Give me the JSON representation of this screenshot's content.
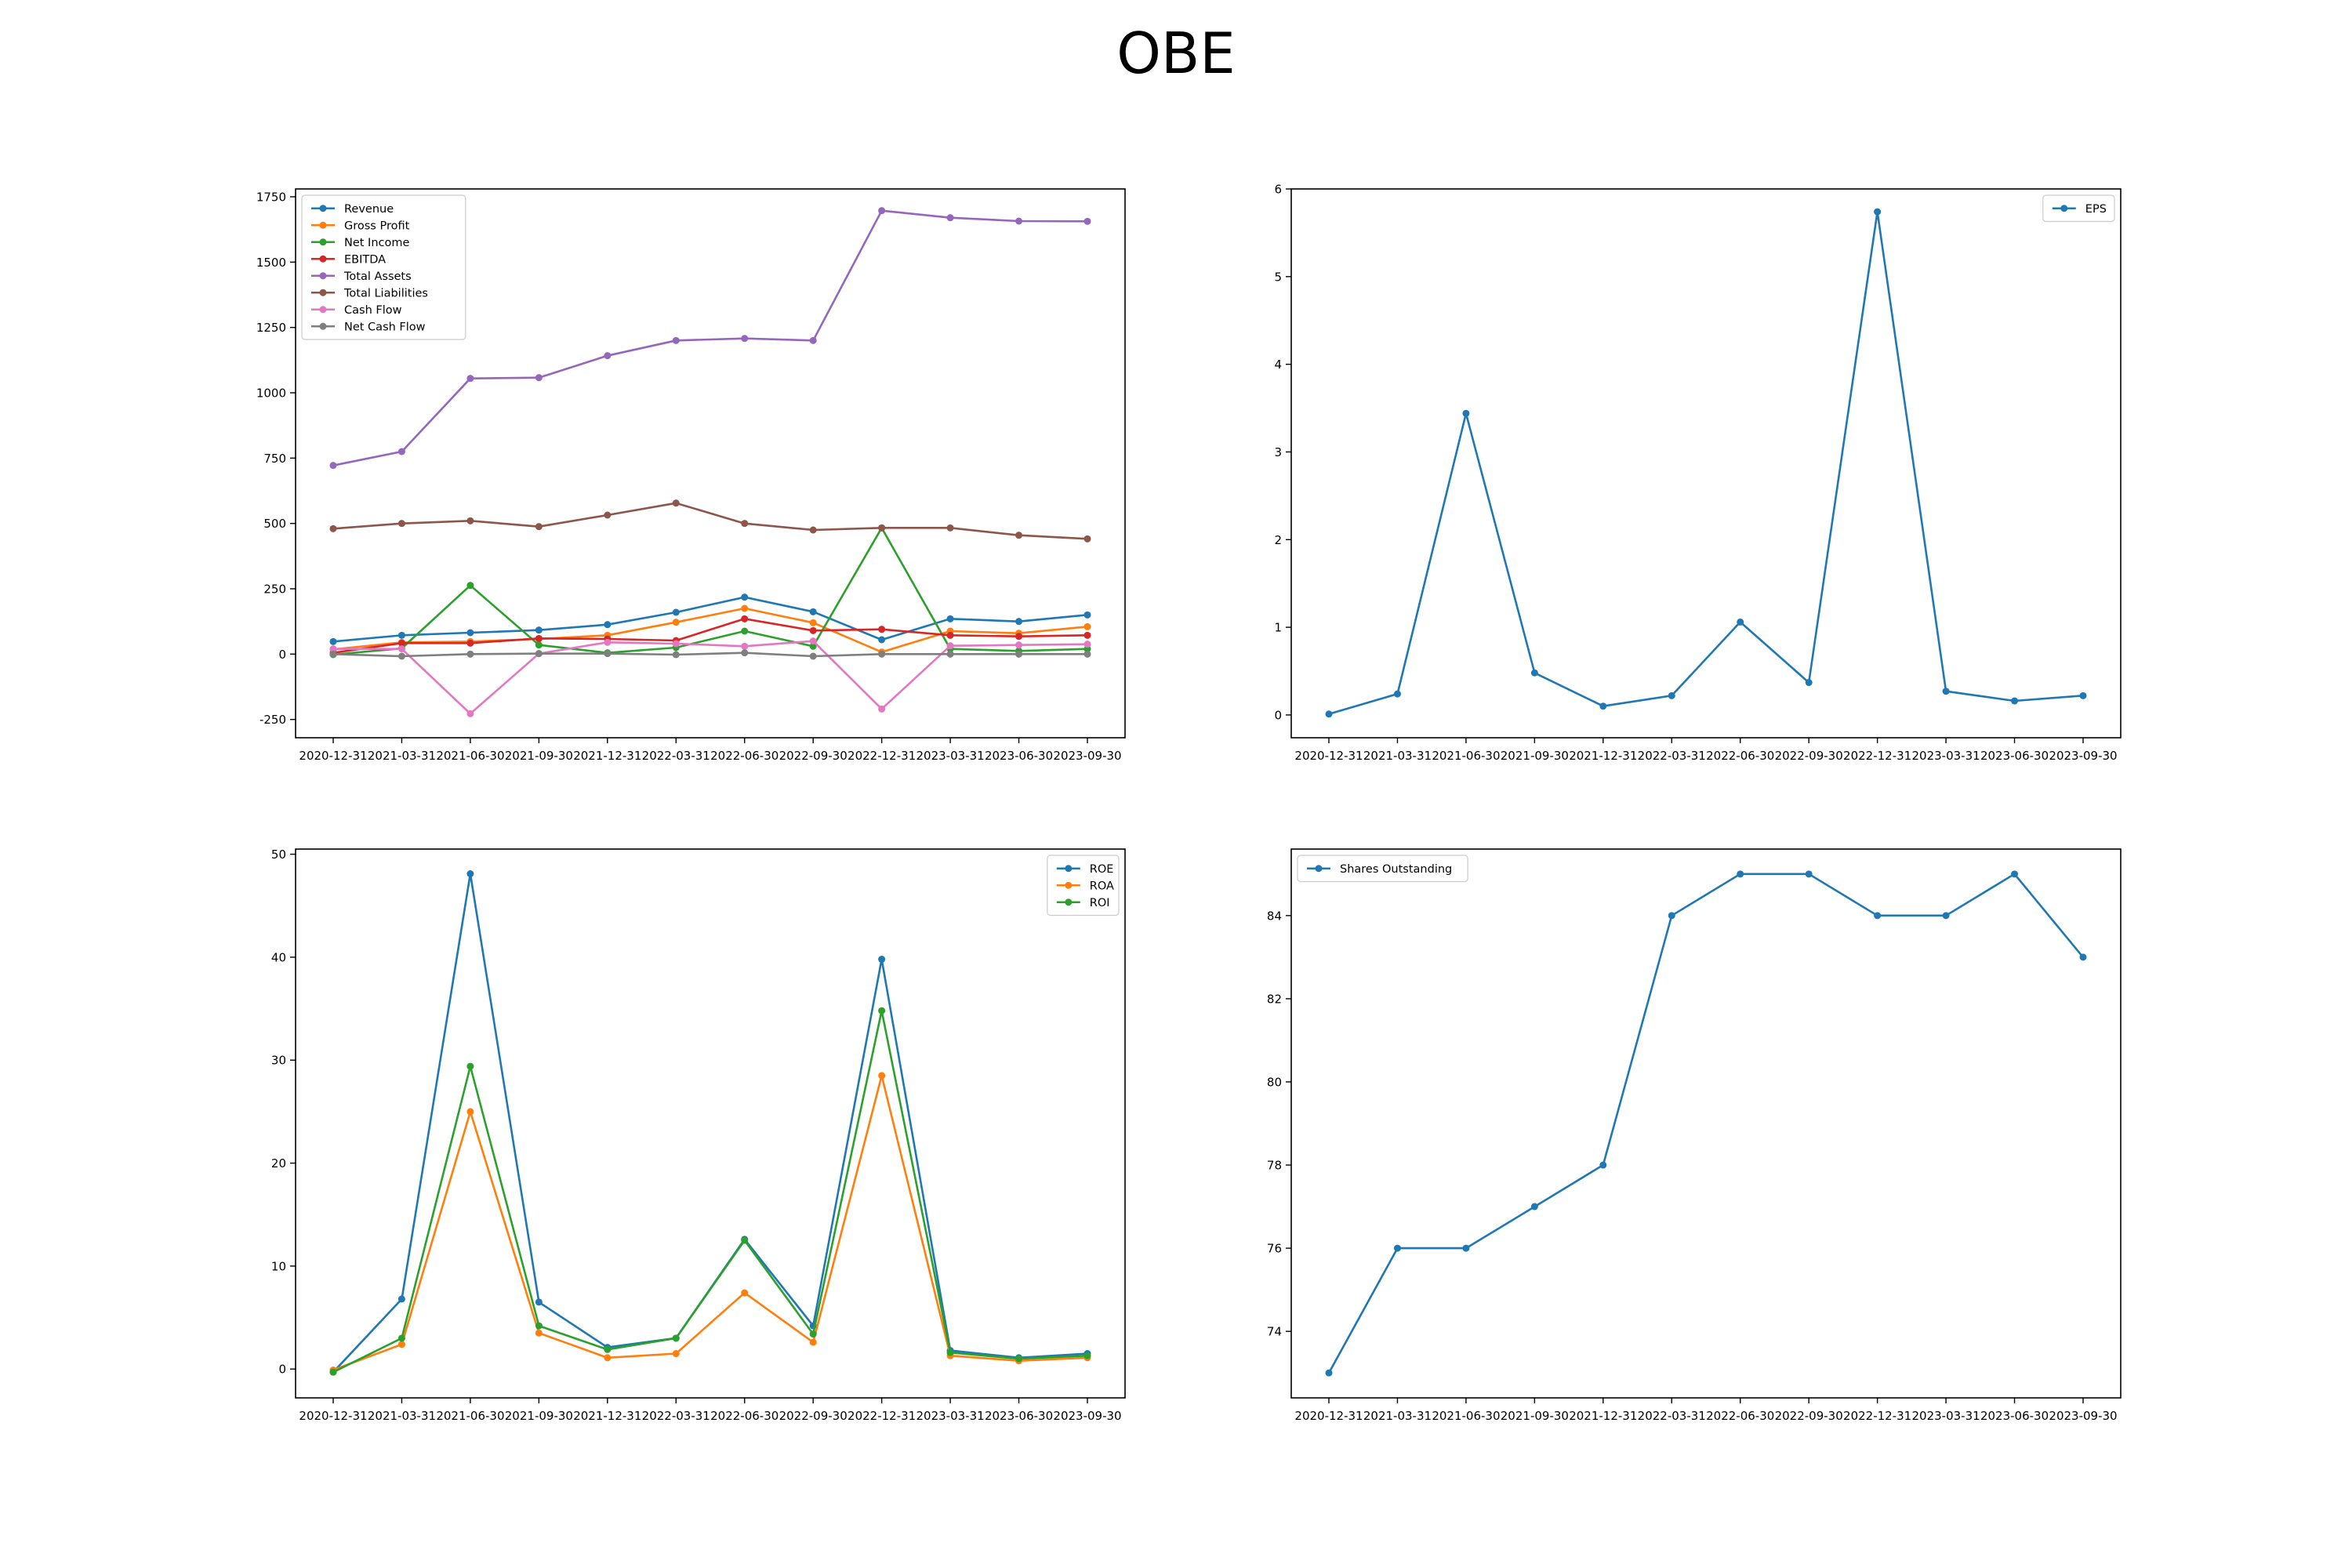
{
  "figure": {
    "title": "OBE"
  },
  "chart_data": [
    {
      "type": "line",
      "title": "",
      "xlabel": "",
      "ylabel": "",
      "categories": [
        "2020-12-31",
        "2021-03-31",
        "2021-06-30",
        "2021-09-30",
        "2021-12-31",
        "2022-03-31",
        "2022-06-30",
        "2022-09-30",
        "2022-12-31",
        "2023-03-31",
        "2023-06-30",
        "2023-09-30"
      ],
      "ylim": [
        -320,
        1780
      ],
      "yticks": [
        -250,
        0,
        250,
        500,
        750,
        1000,
        1250,
        1500,
        1750
      ],
      "grid": false,
      "legend": "upper-left",
      "series": [
        {
          "name": "Revenue",
          "color": "#1f77b4",
          "values": [
            48,
            72,
            82,
            92,
            113,
            160,
            218,
            162,
            55,
            135,
            125,
            150
          ]
        },
        {
          "name": "Gross Profit",
          "color": "#ff7f0e",
          "values": [
            18,
            45,
            48,
            58,
            72,
            122,
            175,
            120,
            8,
            88,
            80,
            105
          ]
        },
        {
          "name": "Net Income",
          "color": "#2ca02c",
          "values": [
            -2,
            22,
            263,
            35,
            5,
            25,
            88,
            30,
            483,
            20,
            12,
            20
          ]
        },
        {
          "name": "EBITDA",
          "color": "#d62728",
          "values": [
            5,
            42,
            42,
            60,
            58,
            52,
            135,
            90,
            95,
            72,
            68,
            72
          ]
        },
        {
          "name": "Total Assets",
          "color": "#9467bd",
          "values": [
            722,
            775,
            1055,
            1058,
            1142,
            1200,
            1208,
            1200,
            1697,
            1670,
            1657,
            1656
          ]
        },
        {
          "name": "Total Liabilities",
          "color": "#8c564b",
          "values": [
            480,
            500,
            510,
            488,
            532,
            578,
            500,
            475,
            483,
            483,
            455,
            441
          ]
        },
        {
          "name": "Cash Flow",
          "color": "#e377c2",
          "values": [
            20,
            20,
            -228,
            2,
            45,
            40,
            30,
            50,
            -210,
            32,
            35,
            38
          ]
        },
        {
          "name": "Net Cash Flow",
          "color": "#7f7f7f",
          "values": [
            0,
            -8,
            0,
            2,
            2,
            -2,
            5,
            -8,
            0,
            0,
            0,
            0
          ]
        }
      ]
    },
    {
      "type": "line",
      "title": "",
      "xlabel": "",
      "ylabel": "",
      "categories": [
        "2020-12-31",
        "2021-03-31",
        "2021-06-30",
        "2021-09-30",
        "2021-12-31",
        "2022-03-31",
        "2022-06-30",
        "2022-09-30",
        "2022-12-31",
        "2023-03-31",
        "2023-06-30",
        "2023-09-30"
      ],
      "ylim": [
        -0.26,
        6.0
      ],
      "yticks": [
        0,
        1,
        2,
        3,
        4,
        5,
        6
      ],
      "grid": false,
      "legend": "upper-right",
      "series": [
        {
          "name": "EPS",
          "color": "#1f77b4",
          "values": [
            0.01,
            0.24,
            3.44,
            0.48,
            0.1,
            0.22,
            1.06,
            0.37,
            5.74,
            0.27,
            0.16,
            0.22
          ]
        }
      ]
    },
    {
      "type": "line",
      "title": "",
      "xlabel": "",
      "ylabel": "",
      "categories": [
        "2020-12-31",
        "2021-03-31",
        "2021-06-30",
        "2021-09-30",
        "2021-12-31",
        "2022-03-31",
        "2022-06-30",
        "2022-09-30",
        "2022-12-31",
        "2023-03-31",
        "2023-06-30",
        "2023-09-30"
      ],
      "ylim": [
        -2.8,
        50.5
      ],
      "yticks": [
        0,
        10,
        20,
        30,
        40,
        50
      ],
      "grid": false,
      "legend": "upper-right",
      "series": [
        {
          "name": "ROE",
          "color": "#1f77b4",
          "values": [
            -0.3,
            6.8,
            48.1,
            6.5,
            2.1,
            3.0,
            12.6,
            4.2,
            39.8,
            1.8,
            1.1,
            1.5
          ]
        },
        {
          "name": "ROA",
          "color": "#ff7f0e",
          "values": [
            -0.1,
            2.4,
            25.0,
            3.5,
            1.1,
            1.5,
            7.4,
            2.6,
            28.5,
            1.3,
            0.8,
            1.1
          ]
        },
        {
          "name": "ROI",
          "color": "#2ca02c",
          "values": [
            -0.3,
            3.0,
            29.4,
            4.2,
            1.9,
            3.0,
            12.5,
            3.4,
            34.8,
            1.6,
            1.0,
            1.3
          ]
        }
      ]
    },
    {
      "type": "line",
      "title": "",
      "xlabel": "",
      "ylabel": "",
      "categories": [
        "2020-12-31",
        "2021-03-31",
        "2021-06-30",
        "2021-09-30",
        "2021-12-31",
        "2022-03-31",
        "2022-06-30",
        "2022-09-30",
        "2022-12-31",
        "2023-03-31",
        "2023-06-30",
        "2023-09-30"
      ],
      "ylim": [
        72.4,
        85.6
      ],
      "yticks": [
        74,
        76,
        78,
        80,
        82,
        84
      ],
      "grid": false,
      "legend": "upper-left",
      "series": [
        {
          "name": "Shares Outstanding",
          "color": "#1f77b4",
          "values": [
            73,
            76,
            76,
            77,
            78,
            84,
            85,
            85,
            84,
            84,
            85,
            83
          ]
        }
      ]
    }
  ]
}
